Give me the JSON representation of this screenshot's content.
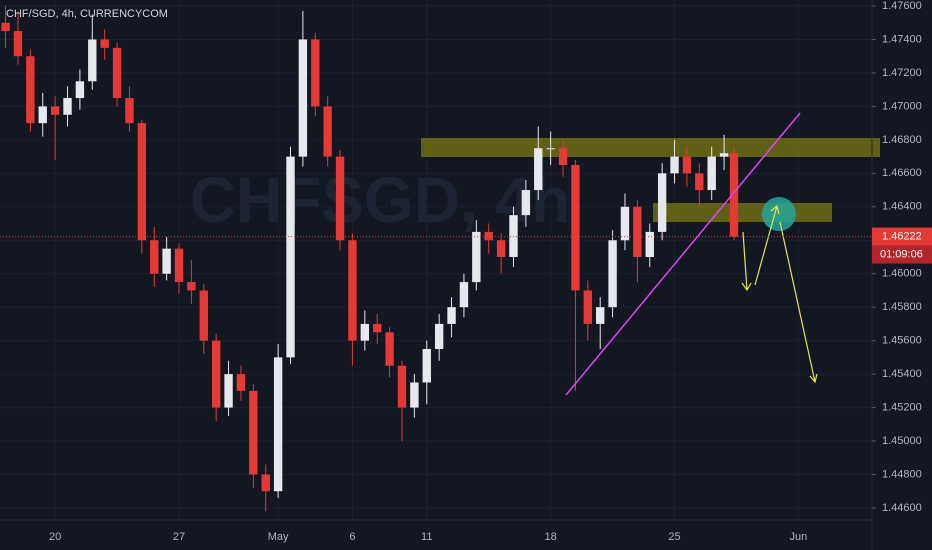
{
  "chart_data": {
    "type": "candlestick",
    "title": "CHF/SGD, 4h, CURRENCYCOM",
    "watermark": "CHFSGD, 4h",
    "up_color": "#e6e8ee",
    "down_color": "#e53935",
    "grid": true,
    "x": [
      -2,
      -1.5,
      -1,
      -0.5,
      0,
      0.5,
      1,
      1.5,
      2,
      2.5,
      3,
      3.5,
      4,
      4.5,
      5,
      5.5,
      6,
      6.5,
      7,
      7.5,
      8,
      8.5,
      9,
      9.5,
      10,
      10.5,
      11,
      11.5,
      12,
      12.5,
      13,
      13.5,
      14,
      14.5,
      15,
      15.5,
      16,
      16.5,
      17,
      17.5,
      18,
      18.5,
      19,
      19.5,
      20,
      20.5,
      21,
      21.5,
      22,
      22.5,
      23,
      23.5,
      24,
      24.5,
      25,
      25.5,
      26,
      26.5,
      27,
      27.4
    ],
    "open": [
      1.475,
      1.4745,
      1.473,
      1.469,
      1.47,
      1.4695,
      1.4705,
      1.4715,
      1.474,
      1.4735,
      1.4705,
      1.469,
      1.462,
      1.46,
      1.4615,
      1.4595,
      1.459,
      1.456,
      1.452,
      1.454,
      1.453,
      1.448,
      1.447,
      1.455,
      1.467,
      1.474,
      1.47,
      1.467,
      1.462,
      1.456,
      1.457,
      1.4565,
      1.4545,
      1.452,
      1.4535,
      1.4555,
      1.457,
      1.458,
      1.4595,
      1.4625,
      1.462,
      1.461,
      1.4635,
      1.465,
      1.4675,
      1.4675,
      1.4665,
      1.459,
      1.457,
      1.458,
      1.462,
      1.464,
      1.461,
      1.4625,
      1.466,
      1.467,
      1.466,
      1.465,
      1.467,
      1.4672
    ],
    "high": [
      1.476,
      1.4757,
      1.4734,
      1.4708,
      1.4706,
      1.4712,
      1.4722,
      1.4755,
      1.4746,
      1.4738,
      1.4712,
      1.4692,
      1.4628,
      1.4622,
      1.4618,
      1.4608,
      1.4594,
      1.4564,
      1.4548,
      1.4545,
      1.4534,
      1.4486,
      1.4558,
      1.4676,
      1.4757,
      1.4744,
      1.4706,
      1.4674,
      1.4624,
      1.4578,
      1.4576,
      1.4568,
      1.4548,
      1.454,
      1.456,
      1.4576,
      1.4586,
      1.46,
      1.4632,
      1.463,
      1.4624,
      1.464,
      1.4656,
      1.4688,
      1.4685,
      1.468,
      1.4668,
      1.4596,
      1.4586,
      1.4626,
      1.4648,
      1.4644,
      1.463,
      1.4666,
      1.468,
      1.4676,
      1.4666,
      1.4676,
      1.4683,
      1.4676
    ],
    "low": [
      1.4735,
      1.4725,
      1.4685,
      1.4682,
      1.4668,
      1.4688,
      1.4698,
      1.471,
      1.4728,
      1.47,
      1.4685,
      1.4612,
      1.4592,
      1.4596,
      1.4588,
      1.4582,
      1.4552,
      1.4512,
      1.4515,
      1.4524,
      1.4472,
      1.4458,
      1.4466,
      1.4546,
      1.4664,
      1.4694,
      1.4664,
      1.4614,
      1.4545,
      1.4554,
      1.4558,
      1.4538,
      1.45,
      1.4514,
      1.4522,
      1.4548,
      1.4562,
      1.4574,
      1.459,
      1.4612,
      1.46,
      1.4604,
      1.4628,
      1.4644,
      1.4665,
      1.4658,
      1.453,
      1.456,
      1.4555,
      1.4574,
      1.4614,
      1.4595,
      1.4604,
      1.462,
      1.4654,
      1.4652,
      1.464,
      1.4644,
      1.4662,
      1.462
    ],
    "close": [
      1.4745,
      1.473,
      1.469,
      1.47,
      1.4695,
      1.4705,
      1.4715,
      1.474,
      1.4735,
      1.4705,
      1.469,
      1.462,
      1.46,
      1.4615,
      1.4595,
      1.459,
      1.456,
      1.452,
      1.454,
      1.453,
      1.448,
      1.447,
      1.455,
      1.467,
      1.474,
      1.47,
      1.467,
      1.462,
      1.456,
      1.457,
      1.4565,
      1.4545,
      1.452,
      1.4535,
      1.4555,
      1.457,
      1.458,
      1.4595,
      1.4625,
      1.462,
      1.461,
      1.4635,
      1.465,
      1.4675,
      1.4675,
      1.4665,
      1.459,
      1.457,
      1.458,
      1.462,
      1.464,
      1.461,
      1.4625,
      1.466,
      1.467,
      1.466,
      1.465,
      1.467,
      1.4672,
      1.46222
    ],
    "current_price": 1.46222,
    "countdown": "01:09:06",
    "xlim": [
      -2.225,
      32.97
    ],
    "xticks": [
      {
        "value": 0,
        "label": "20"
      },
      {
        "value": 5,
        "label": "27"
      },
      {
        "value": 9,
        "label": "May"
      },
      {
        "value": 12,
        "label": "6"
      },
      {
        "value": 15,
        "label": "11"
      },
      {
        "value": 20,
        "label": "18"
      },
      {
        "value": 25,
        "label": "25"
      },
      {
        "value": 30,
        "label": "Jun"
      }
    ],
    "ylim": [
      1.44528,
      1.47636
    ],
    "yticks": [
      {
        "value": 1.446,
        "label": "1.44600"
      },
      {
        "value": 1.448,
        "label": "1.44800"
      },
      {
        "value": 1.45,
        "label": "1.45000"
      },
      {
        "value": 1.452,
        "label": "1.45200"
      },
      {
        "value": 1.454,
        "label": "1.45400"
      },
      {
        "value": 1.456,
        "label": "1.45600"
      },
      {
        "value": 1.458,
        "label": "1.45800"
      },
      {
        "value": 1.46,
        "label": "1.46000"
      },
      {
        "value": 1.462,
        "label": "1.46200"
      },
      {
        "value": 1.464,
        "label": "1.46400"
      },
      {
        "value": 1.466,
        "label": "1.46600"
      },
      {
        "value": 1.468,
        "label": "1.46800"
      },
      {
        "value": 1.47,
        "label": "1.47000"
      },
      {
        "value": 1.472,
        "label": "1.47200"
      },
      {
        "value": 1.474,
        "label": "1.47400"
      },
      {
        "value": 1.476,
        "label": "1.47600"
      }
    ]
  }
}
